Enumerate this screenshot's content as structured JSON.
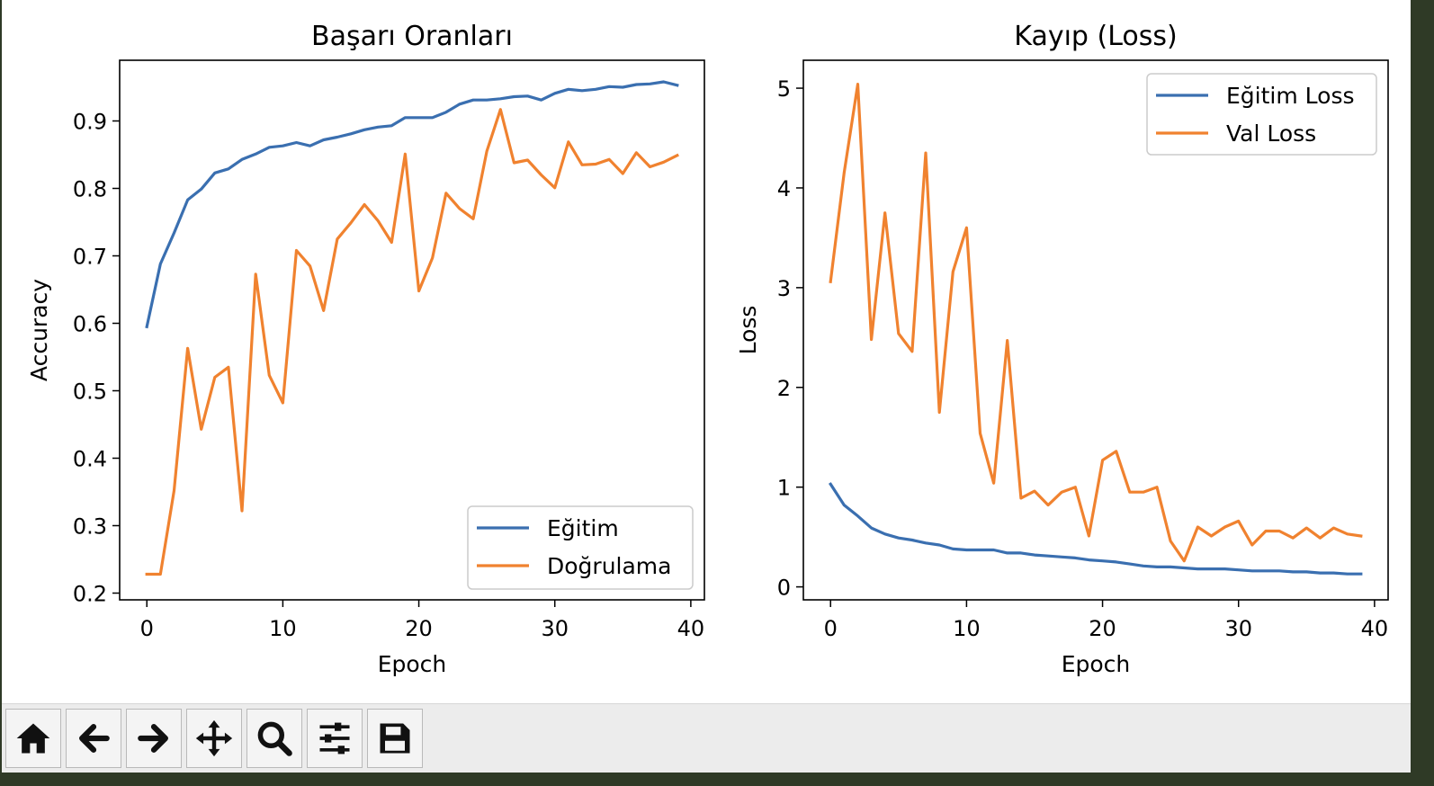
{
  "colors": {
    "blue": "#3a6fb0",
    "orange": "#f0822f"
  },
  "toolbar": {
    "buttons": [
      {
        "name": "home",
        "icon": "home-icon"
      },
      {
        "name": "back",
        "icon": "arrow-left-icon"
      },
      {
        "name": "forward",
        "icon": "arrow-right-icon"
      },
      {
        "name": "pan",
        "icon": "move-icon"
      },
      {
        "name": "zoom",
        "icon": "magnifier-icon"
      },
      {
        "name": "configure-subplots",
        "icon": "sliders-icon"
      },
      {
        "name": "save",
        "icon": "floppy-disk-icon"
      }
    ]
  },
  "chart_data": [
    {
      "type": "line",
      "title": "Başarı Oranları",
      "xlabel": "Epoch",
      "ylabel": "Accuracy",
      "xlim": [
        -2,
        41
      ],
      "ylim": [
        0.19,
        0.99
      ],
      "xticks": [
        0,
        10,
        20,
        30,
        40
      ],
      "xtick_labels": [
        "0",
        "10",
        "20",
        "30",
        "40"
      ],
      "yticks": [
        0.2,
        0.3,
        0.4,
        0.5,
        0.6,
        0.7,
        0.8,
        0.9
      ],
      "ytick_labels": [
        "0.2",
        "0.3",
        "0.4",
        "0.5",
        "0.6",
        "0.7",
        "0.8",
        "0.9"
      ],
      "legend_position": "lower-right",
      "series": [
        {
          "name": "Eğitim",
          "color": "#3a6fb0",
          "values": [
            0.595,
            0.688,
            0.734,
            0.783,
            0.799,
            0.823,
            0.829,
            0.843,
            0.851,
            0.861,
            0.863,
            0.868,
            0.863,
            0.872,
            0.876,
            0.881,
            0.887,
            0.891,
            0.893,
            0.905,
            0.905,
            0.905,
            0.913,
            0.925,
            0.931,
            0.931,
            0.933,
            0.936,
            0.937,
            0.931,
            0.941,
            0.947,
            0.945,
            0.947,
            0.951,
            0.95,
            0.954,
            0.955,
            0.958,
            0.953
          ]
        },
        {
          "name": "Doğrulama",
          "color": "#f0822f",
          "values": [
            0.228,
            0.228,
            0.352,
            0.563,
            0.443,
            0.52,
            0.535,
            0.322,
            0.673,
            0.523,
            0.482,
            0.708,
            0.685,
            0.619,
            0.725,
            0.749,
            0.776,
            0.752,
            0.72,
            0.851,
            0.648,
            0.697,
            0.793,
            0.77,
            0.755,
            0.855,
            0.917,
            0.838,
            0.842,
            0.82,
            0.801,
            0.869,
            0.835,
            0.836,
            0.843,
            0.822,
            0.853,
            0.832,
            0.839,
            0.849
          ]
        }
      ]
    },
    {
      "type": "line",
      "title": "Kayıp (Loss)",
      "xlabel": "Epoch",
      "ylabel": "Loss",
      "xlim": [
        -2,
        41
      ],
      "ylim": [
        -0.13,
        5.28
      ],
      "xticks": [
        0,
        10,
        20,
        30,
        40
      ],
      "xtick_labels": [
        "0",
        "10",
        "20",
        "30",
        "40"
      ],
      "yticks": [
        0,
        1,
        2,
        3,
        4,
        5
      ],
      "ytick_labels": [
        "0",
        "1",
        "2",
        "3",
        "4",
        "5"
      ],
      "legend_position": "upper-right",
      "series": [
        {
          "name": "Eğitim Loss",
          "color": "#3a6fb0",
          "values": [
            1.03,
            0.82,
            0.71,
            0.59,
            0.53,
            0.49,
            0.47,
            0.44,
            0.42,
            0.38,
            0.37,
            0.37,
            0.37,
            0.34,
            0.34,
            0.32,
            0.31,
            0.3,
            0.29,
            0.27,
            0.26,
            0.25,
            0.23,
            0.21,
            0.2,
            0.2,
            0.19,
            0.18,
            0.18,
            0.18,
            0.17,
            0.16,
            0.16,
            0.16,
            0.15,
            0.15,
            0.14,
            0.14,
            0.13,
            0.13
          ]
        },
        {
          "name": "Val Loss",
          "color": "#f0822f",
          "values": [
            3.06,
            4.15,
            5.04,
            2.48,
            3.75,
            2.54,
            2.36,
            4.35,
            1.75,
            3.16,
            3.6,
            1.54,
            1.04,
            2.47,
            0.89,
            0.96,
            0.82,
            0.95,
            1.0,
            0.51,
            1.27,
            1.36,
            0.95,
            0.95,
            1.0,
            0.46,
            0.26,
            0.6,
            0.51,
            0.6,
            0.66,
            0.42,
            0.56,
            0.56,
            0.49,
            0.59,
            0.49,
            0.59,
            0.53,
            0.51
          ]
        }
      ]
    }
  ]
}
